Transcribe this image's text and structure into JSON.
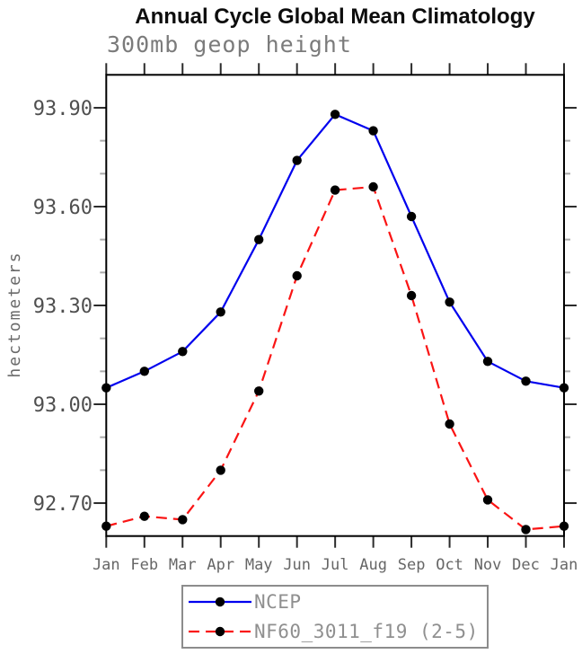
{
  "page": {
    "title": "Annual Cycle Global Mean Climatology",
    "subtitle": "300mb geop height"
  },
  "chart_data": {
    "type": "line",
    "title": "Annual Cycle Global Mean Climatology",
    "subtitle": "300mb geop height",
    "xlabel": "",
    "ylabel": "hectometers",
    "x_categories": [
      "Jan",
      "Feb",
      "Mar",
      "Apr",
      "May",
      "Jun",
      "Jul",
      "Aug",
      "Sep",
      "Oct",
      "Nov",
      "Dec",
      "Jan"
    ],
    "ylim": [
      92.6,
      94.0
    ],
    "ytick_major": [
      92.7,
      93.0,
      93.3,
      93.6,
      93.9
    ],
    "ytick_minor_step": 0.1,
    "ytick_label_format": "0.00",
    "grid": false,
    "legend_position": "bottom-center",
    "series": [
      {
        "name": "NCEP",
        "color": "#0000ee",
        "style": "solid",
        "marker": "filled-circle",
        "marker_color": "#000000",
        "values": [
          93.05,
          93.1,
          93.16,
          93.28,
          93.5,
          93.74,
          93.88,
          93.83,
          93.57,
          93.31,
          93.13,
          93.07,
          93.05
        ]
      },
      {
        "name": "NF60_3011_f19 (2-5)",
        "color": "#fa1414",
        "style": "dashed",
        "marker": "filled-circle",
        "marker_color": "#000000",
        "values": [
          92.63,
          92.66,
          92.65,
          92.8,
          93.04,
          93.39,
          93.65,
          93.66,
          93.33,
          92.94,
          92.71,
          92.62,
          92.63
        ]
      }
    ],
    "colors": {
      "axis": "#000000",
      "major_tick": "#2b2b2b",
      "minor_tick": "#ababab",
      "tick_label": "#4f4f4f",
      "month_label": "#666666",
      "subtitle": "#7b7b7b",
      "legend_text": "#8f8f8f",
      "legend_border": "#8c8c8c"
    }
  }
}
